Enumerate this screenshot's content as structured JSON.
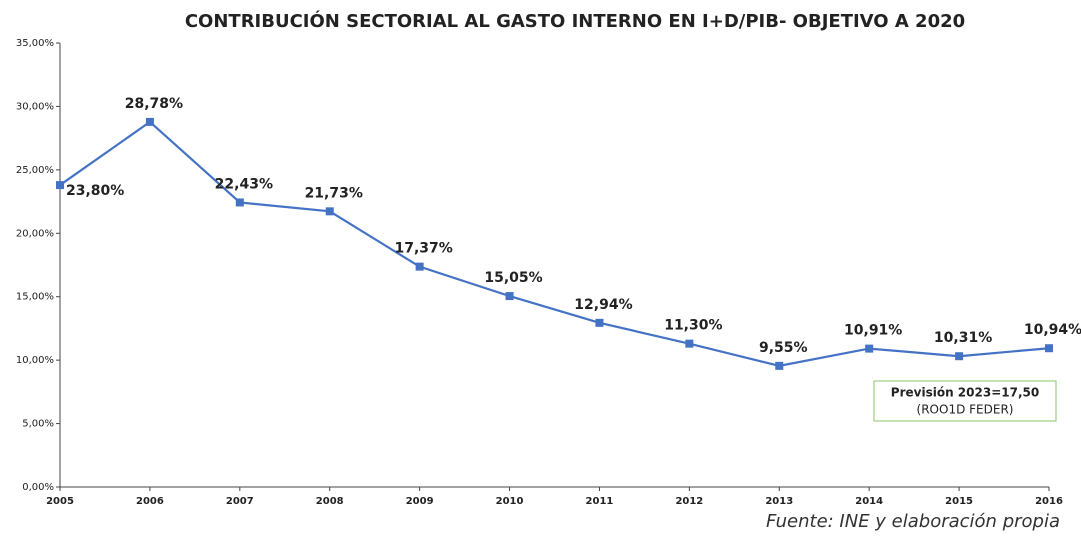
{
  "chart_data": {
    "type": "line",
    "title": "CONTRIBUCIÓN SECTORIAL AL GASTO INTERNO EN I+D/PIB- OBJETIVO A 2020",
    "categories": [
      "2005",
      "2006",
      "2007",
      "2008",
      "2009",
      "2010",
      "2011",
      "2012",
      "2013",
      "2014",
      "2015",
      "2016"
    ],
    "values": [
      23.8,
      28.78,
      22.43,
      21.73,
      17.37,
      15.05,
      12.94,
      11.3,
      9.55,
      10.91,
      10.31,
      10.94
    ],
    "value_labels": [
      "23,80%",
      "28,78%",
      "22,43%",
      "21,73%",
      "17,37%",
      "15,05%",
      "12,94%",
      "11,30%",
      "9,55%",
      "10,91%",
      "10,31%",
      "10,94%"
    ],
    "color": "#4472c4",
    "ylim": [
      0,
      35
    ],
    "yticks": [
      {
        "value": 0,
        "label": "0,00%"
      },
      {
        "value": 5,
        "label": "5,00%"
      },
      {
        "value": 10,
        "label": "10,00%"
      },
      {
        "value": 15,
        "label": "15,00%"
      },
      {
        "value": 20,
        "label": "20,00%"
      },
      {
        "value": 25,
        "label": "25,00%"
      },
      {
        "value": 30,
        "label": "30,00%"
      },
      {
        "value": 35,
        "label": "35,00%"
      }
    ],
    "grid": false,
    "annotation": {
      "title": "Previsión 2023=17,50",
      "text": "(ROO1D FEDER)"
    },
    "source": "Fuente: INE y elaboración propia"
  }
}
